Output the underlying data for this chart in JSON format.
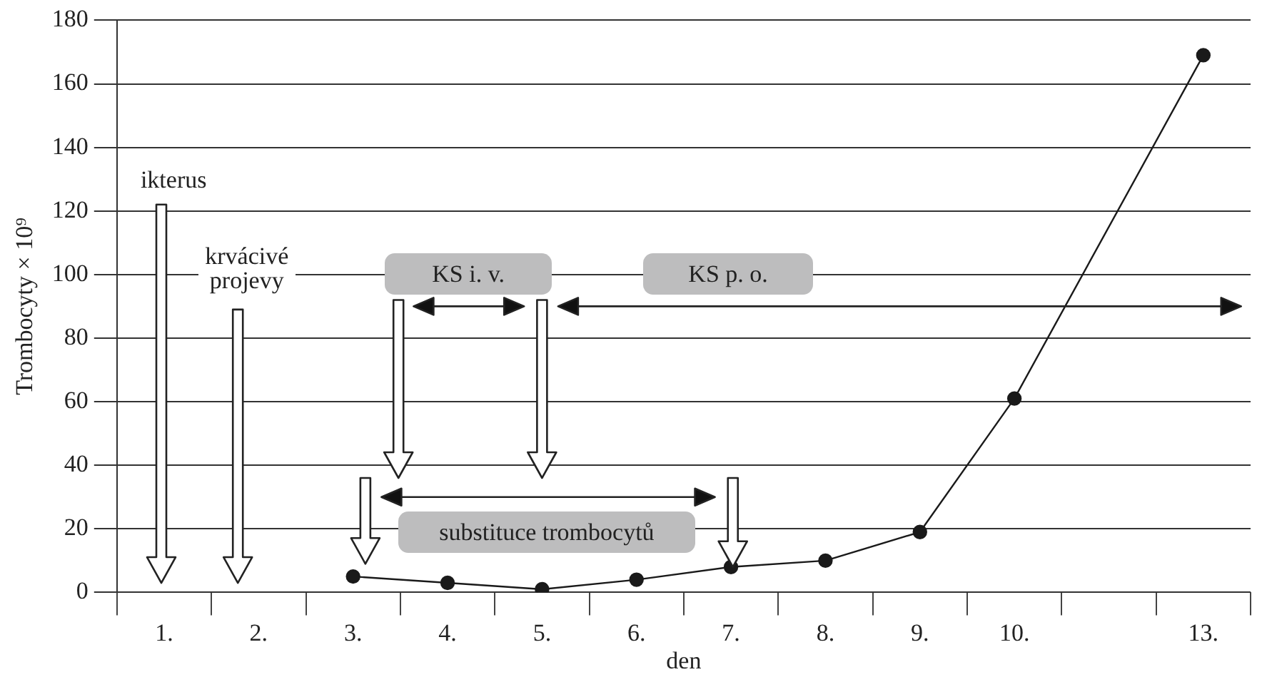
{
  "chart_data": {
    "type": "line",
    "xlabel": "den",
    "ylabel": "Trombocyty × 10⁹",
    "categories": [
      "1.",
      "2.",
      "3.",
      "4.",
      "5.",
      "6.",
      "7.",
      "8.",
      "9.",
      "10.",
      null,
      "13."
    ],
    "series": [
      {
        "color": "#1a1a1a",
        "values": [
          null,
          null,
          5,
          3,
          1,
          4,
          8,
          10,
          19,
          61,
          null,
          169
        ]
      }
    ],
    "ylim": [
      0,
      180
    ],
    "yticks": [
      0,
      20,
      40,
      60,
      80,
      100,
      120,
      140,
      160,
      180
    ],
    "grid": "y",
    "legend": false,
    "marker": "circle",
    "line_style": "solid",
    "annotations": [
      "ikterus",
      "krvácivé projevy",
      "KS i. v.",
      "KS p. o.",
      "substituce trombocytů"
    ]
  }
}
